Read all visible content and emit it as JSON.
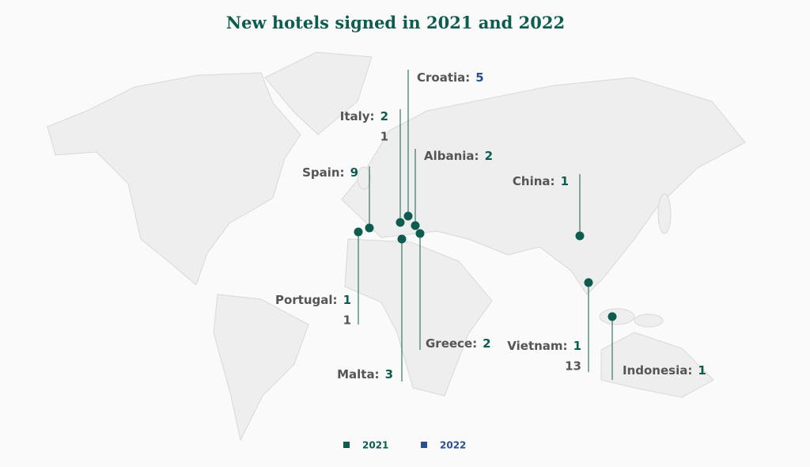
{
  "title": "New hotels signed in 2021 and 2022",
  "legend": [
    {
      "label": "2021",
      "color": "#0d5c4f"
    },
    {
      "label": "2022",
      "color": "#2b4f8e"
    }
  ],
  "locations": [
    {
      "name": "Croatia:",
      "counts": [
        null,
        5
      ]
    },
    {
      "name": "Italy:",
      "counts": [
        2,
        1
      ]
    },
    {
      "name": "Albania:",
      "counts": [
        2,
        null
      ]
    },
    {
      "name": "Spain:",
      "counts": [
        9,
        null
      ]
    },
    {
      "name": "China:",
      "counts": [
        1,
        null
      ]
    },
    {
      "name": "Portugal:",
      "counts": [
        1,
        1
      ]
    },
    {
      "name": "Malta:",
      "counts": [
        3,
        null
      ]
    },
    {
      "name": "Greece:",
      "counts": [
        2,
        null
      ]
    },
    {
      "name": "Vietnam:",
      "counts": [
        1,
        13
      ]
    },
    {
      "name": "Indonesia:",
      "counts": [
        1,
        null
      ]
    }
  ]
}
